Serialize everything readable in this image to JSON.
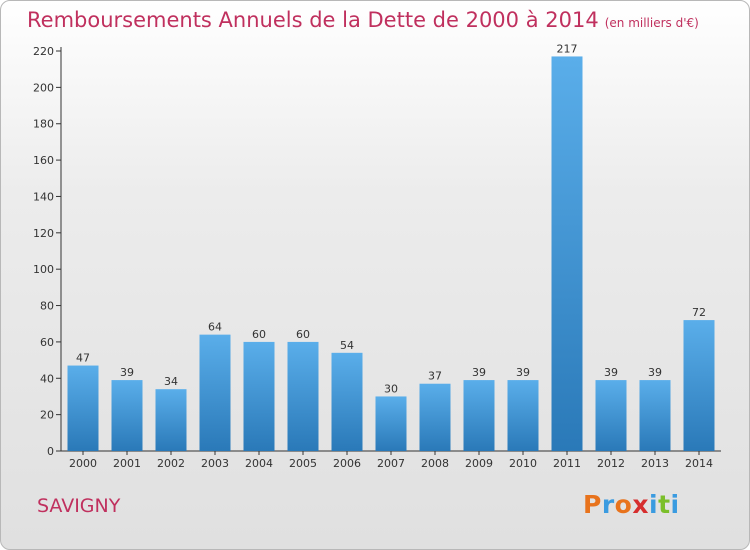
{
  "header": {
    "title": "Remboursements Annuels de la Dette de 2000 à 2014",
    "unit": "(en milliers d'€)"
  },
  "footer": {
    "commune": "SAVIGNY",
    "logo_text": "Proxiti",
    "logo_colors": [
      "#e8731c",
      "#3a9be0",
      "#e8731c",
      "#d62e2e",
      "#3a9be0",
      "#7bbf2a",
      "#3a9be0"
    ]
  },
  "colors": {
    "title": "#c0305e",
    "bar_light": "#5aaeea",
    "bar_dark": "#2a79b8",
    "axis": "#333333"
  },
  "chart_data": {
    "type": "bar",
    "title": "Remboursements Annuels de la Dette de 2000 à 2014",
    "xlabel": "",
    "ylabel": "",
    "categories": [
      "2000",
      "2001",
      "2002",
      "2003",
      "2004",
      "2005",
      "2006",
      "2007",
      "2008",
      "2009",
      "2010",
      "2011",
      "2012",
      "2013",
      "2014"
    ],
    "values": [
      47,
      39,
      34,
      64,
      60,
      60,
      54,
      30,
      37,
      39,
      39,
      217,
      39,
      39,
      72
    ],
    "ylim": [
      0,
      220
    ],
    "yticks": [
      0,
      20,
      40,
      60,
      80,
      100,
      120,
      140,
      160,
      180,
      200,
      220
    ],
    "grid": false,
    "data_labels": true
  }
}
